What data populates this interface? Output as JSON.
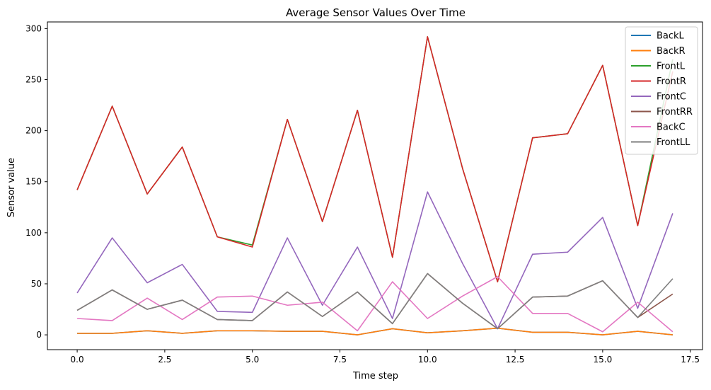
{
  "chart_data": {
    "type": "line",
    "title": "Average Sensor Values Over Time",
    "xlabel": "Time step",
    "ylabel": "Sensor value",
    "xlim": [
      -0.85,
      17.85
    ],
    "ylim": [
      -14.5,
      306.5
    ],
    "xticks": [
      0.0,
      2.5,
      5.0,
      7.5,
      10.0,
      12.5,
      15.0,
      17.5
    ],
    "xtick_labels": [
      "0.0",
      "2.5",
      "5.0",
      "7.5",
      "10.0",
      "12.5",
      "15.0",
      "17.5"
    ],
    "yticks": [
      0,
      50,
      100,
      150,
      200,
      250,
      300
    ],
    "ytick_labels": [
      "0",
      "50",
      "100",
      "150",
      "200",
      "250",
      "300"
    ],
    "grid": false,
    "legend_position": "top-right",
    "x": [
      0,
      1,
      2,
      3,
      4,
      5,
      6,
      7,
      8,
      9,
      10,
      11,
      12,
      13,
      14,
      15,
      16,
      17
    ],
    "series": [
      {
        "name": "BackL",
        "color": "#1f77b4",
        "values": [
          1.5,
          1.5,
          4,
          1.5,
          4,
          4,
          3.5,
          3.5,
          0,
          6,
          2,
          4,
          6.5,
          2.5,
          2.5,
          0,
          3.5,
          0
        ]
      },
      {
        "name": "BackR",
        "color": "#ff7f0e",
        "values": [
          1.5,
          1.5,
          4,
          1.5,
          4,
          4,
          3.5,
          3.5,
          0,
          6,
          2,
          4,
          6.5,
          2.5,
          2.5,
          0,
          3.5,
          0
        ]
      },
      {
        "name": "FrontL",
        "color": "#2ca02c",
        "values": [
          142,
          224,
          138,
          184,
          96,
          88,
          211,
          111,
          220,
          76,
          292,
          163,
          52,
          193,
          197,
          264,
          107,
          270
        ]
      },
      {
        "name": "FrontR",
        "color": "#d62728",
        "values": [
          142,
          224,
          138,
          184,
          96,
          86,
          211,
          111,
          220,
          76,
          292,
          163,
          52,
          193,
          197,
          264,
          107,
          258
        ]
      },
      {
        "name": "FrontC",
        "color": "#9467bd",
        "values": [
          41,
          95,
          51,
          69,
          23,
          22,
          95,
          29,
          86,
          16,
          140,
          70,
          6,
          79,
          81,
          115,
          26,
          119
        ]
      },
      {
        "name": "FrontRR",
        "color": "#8c564b",
        "values": [
          24,
          44,
          25,
          34,
          15,
          14,
          42,
          18,
          42,
          11,
          60,
          31,
          6,
          37,
          38,
          53,
          17,
          40
        ]
      },
      {
        "name": "BackC",
        "color": "#e377c2",
        "values": [
          16,
          14,
          36,
          15,
          37,
          38,
          29,
          32,
          4,
          52,
          16,
          38,
          57,
          21,
          21,
          3,
          32,
          3
        ]
      },
      {
        "name": "FrontLL",
        "color": "#7f7f7f",
        "values": [
          24,
          44,
          25,
          34,
          15,
          14,
          42,
          18,
          42,
          11,
          60,
          31,
          6,
          37,
          38,
          53,
          17,
          55
        ]
      }
    ]
  }
}
